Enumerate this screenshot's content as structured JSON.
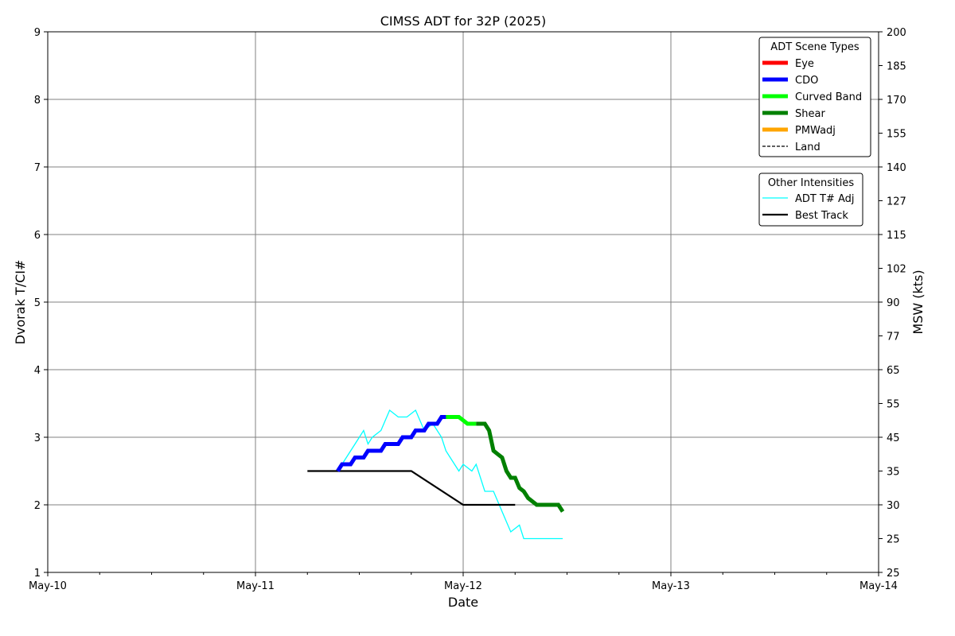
{
  "chart_data": {
    "type": "line",
    "title": "CIMSS ADT for 32P (2025)",
    "xlabel": "Date",
    "ylabel": "Dvorak T/CI#",
    "y2label": "MSW (kts)",
    "xlim": [
      "2025-05-10 00:00",
      "2025-05-14 00:00"
    ],
    "ylim": [
      1,
      9
    ],
    "x_ticks": [
      "May-10",
      "May-11",
      "May-12",
      "May-13",
      "May-14"
    ],
    "y_ticks": [
      "1",
      "2",
      "3",
      "4",
      "5",
      "6",
      "7",
      "8",
      "9"
    ],
    "y2_ticks": [
      "25",
      "25",
      "30",
      "35",
      "45",
      "55",
      "65",
      "77",
      "90",
      "102",
      "115",
      "127",
      "140",
      "155",
      "170",
      "185",
      "200"
    ],
    "grid": true,
    "legend_scene": {
      "title": "ADT Scene Types",
      "placement": "top-right",
      "items": [
        {
          "label": "Eye",
          "color": "#ff0000",
          "style": "solid"
        },
        {
          "label": "CDO",
          "color": "#0000ff",
          "style": "solid"
        },
        {
          "label": "Curved Band",
          "color": "#00ff00",
          "style": "solid"
        },
        {
          "label": "Shear",
          "color": "#008000",
          "style": "solid"
        },
        {
          "label": "PMWadj",
          "color": "#ffa500",
          "style": "solid"
        },
        {
          "label": "Land",
          "color": "#000000",
          "style": "dashed"
        }
      ]
    },
    "legend_other": {
      "title": "Other Intensities",
      "placement": "top-right",
      "items": [
        {
          "label": "ADT T# Adj",
          "color": "#00ffff",
          "style": "thin"
        },
        {
          "label": "Best Track",
          "color": "#000000",
          "style": "solid"
        }
      ]
    },
    "series": [
      {
        "name": "CDO",
        "color": "#0000ff",
        "x": [
          "2025-05-11 09:30",
          "2025-05-11 10:00",
          "2025-05-11 11:00",
          "2025-05-11 11:30",
          "2025-05-11 12:30",
          "2025-05-11 13:00",
          "2025-05-11 14:30",
          "2025-05-11 15:00",
          "2025-05-11 16:30",
          "2025-05-11 17:00",
          "2025-05-11 18:00",
          "2025-05-11 18:30",
          "2025-05-11 19:30",
          "2025-05-11 20:00",
          "2025-05-11 21:00",
          "2025-05-11 21:30",
          "2025-05-11 22:00",
          "2025-05-11 22:30",
          "2025-05-11 23:00"
        ],
        "y": [
          2.5,
          2.6,
          2.6,
          2.7,
          2.7,
          2.8,
          2.8,
          2.9,
          2.9,
          3.0,
          3.0,
          3.1,
          3.1,
          3.2,
          3.2,
          3.3,
          3.3,
          3.3,
          3.3
        ]
      },
      {
        "name": "Curved Band",
        "color": "#00ff00",
        "x": [
          "2025-05-11 22:00",
          "2025-05-11 23:00",
          "2025-05-11 23:30",
          "2025-05-12 00:30",
          "2025-05-12 01:30"
        ],
        "y": [
          3.3,
          3.3,
          3.3,
          3.2,
          3.2
        ]
      },
      {
        "name": "Shear",
        "color": "#008000",
        "x": [
          "2025-05-12 01:30",
          "2025-05-12 02:30",
          "2025-05-12 03:00",
          "2025-05-12 03:30",
          "2025-05-12 04:00",
          "2025-05-12 04:30",
          "2025-05-12 05:00",
          "2025-05-12 05:30",
          "2025-05-12 06:00",
          "2025-05-12 06:30",
          "2025-05-12 07:00",
          "2025-05-12 07:30",
          "2025-05-12 08:30",
          "2025-05-12 09:30",
          "2025-05-12 11:00",
          "2025-05-12 11:30"
        ],
        "y": [
          3.2,
          3.2,
          3.1,
          2.8,
          2.75,
          2.7,
          2.5,
          2.4,
          2.4,
          2.25,
          2.2,
          2.1,
          2.0,
          2.0,
          2.0,
          1.9
        ]
      },
      {
        "name": "ADT T# Adj",
        "color": "#00ffff",
        "x": [
          "2025-05-11 09:30",
          "2025-05-11 10:30",
          "2025-05-11 11:30",
          "2025-05-11 12:30",
          "2025-05-11 13:00",
          "2025-05-11 13:30",
          "2025-05-11 14:30",
          "2025-05-11 15:30",
          "2025-05-11 16:30",
          "2025-05-11 17:30",
          "2025-05-11 18:30",
          "2025-05-11 19:30",
          "2025-05-11 20:30",
          "2025-05-11 21:30",
          "2025-05-11 22:00",
          "2025-05-11 22:30",
          "2025-05-11 23:30",
          "2025-05-12 00:00",
          "2025-05-12 01:00",
          "2025-05-12 01:30",
          "2025-05-12 02:30",
          "2025-05-12 03:30",
          "2025-05-12 04:30",
          "2025-05-12 05:30",
          "2025-05-12 06:30",
          "2025-05-12 07:00",
          "2025-05-12 08:00",
          "2025-05-12 11:30"
        ],
        "y": [
          2.5,
          2.7,
          2.9,
          3.1,
          2.9,
          3.0,
          3.1,
          3.4,
          3.3,
          3.3,
          3.4,
          3.1,
          3.2,
          3.0,
          2.8,
          2.7,
          2.5,
          2.6,
          2.5,
          2.6,
          2.2,
          2.2,
          1.9,
          1.6,
          1.7,
          1.5,
          1.5,
          1.5
        ]
      },
      {
        "name": "Best Track",
        "color": "#000000",
        "x": [
          "2025-05-11 06:00",
          "2025-05-11 18:00",
          "2025-05-12 00:00",
          "2025-05-12 06:00"
        ],
        "y": [
          2.5,
          2.5,
          2.0,
          2.0
        ]
      }
    ]
  }
}
